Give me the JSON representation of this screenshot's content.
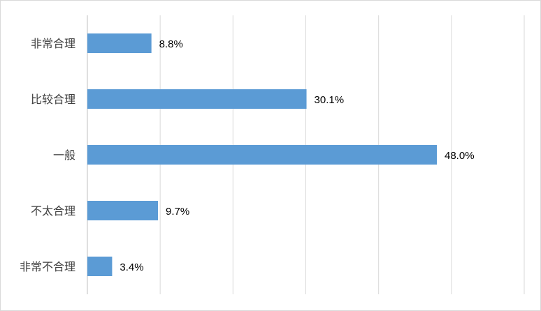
{
  "chart_data": {
    "type": "bar",
    "orientation": "horizontal",
    "categories": [
      "非常合理",
      "比较合理",
      "一般",
      "不太合理",
      "非常不合理"
    ],
    "values": [
      8.8,
      30.1,
      48.0,
      9.7,
      3.4
    ],
    "value_labels": [
      "8.8%",
      "30.1%",
      "48.0%",
      "9.7%",
      "3.4%"
    ],
    "xlim": [
      0,
      60
    ],
    "x_unit": "%",
    "grid": true,
    "legend": "none",
    "title": "",
    "xlabel": "",
    "ylabel": "",
    "colors": {
      "bar": "#5b9bd5",
      "grid": "#d9d9d9",
      "axis": "#bfbfbf",
      "label": "#404040"
    }
  }
}
